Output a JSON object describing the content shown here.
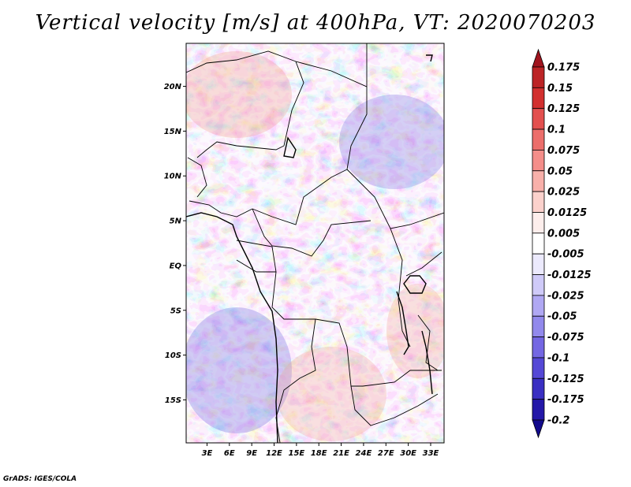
{
  "title": "Vertical velocity [m/s] at 400hPa, VT: 2020070203",
  "credit": "GrADS: IGES/COLA",
  "map": {
    "lat_ticks": [
      "20N",
      "15N",
      "10N",
      "5N",
      "EQ",
      "5S",
      "10S",
      "15S"
    ],
    "lat_values": [
      20,
      15,
      10,
      5,
      0,
      -5,
      -10,
      -15
    ],
    "lon_ticks": [
      "3E",
      "6E",
      "9E",
      "12E",
      "15E",
      "18E",
      "21E",
      "24E",
      "27E",
      "30E",
      "33E"
    ],
    "lon_values": [
      3,
      6,
      9,
      12,
      15,
      18,
      21,
      24,
      27,
      30,
      33
    ],
    "lat_range": [
      -19.8,
      24.8
    ],
    "lon_range": [
      0.2,
      34.8
    ]
  },
  "colorbar": {
    "labels": [
      "0.175",
      "0.15",
      "0.125",
      "0.1",
      "0.075",
      "0.05",
      "0.025",
      "0.0125",
      "0.005",
      "-0.005",
      "-0.0125",
      "-0.025",
      "-0.05",
      "-0.075",
      "-0.1",
      "-0.125",
      "-0.175",
      "-0.2"
    ],
    "colors": [
      "#a0141e",
      "#bc2426",
      "#d2302f",
      "#e3504f",
      "#ec6e6b",
      "#f48e8a",
      "#f8b0aa",
      "#fbd1cc",
      "#fdeeec",
      "#ffffff",
      "#eceafd",
      "#cfcaf8",
      "#b0a8f3",
      "#9289ec",
      "#7467e3",
      "#5548d6",
      "#3a2fc2",
      "#2418a8",
      "#120a8c"
    ]
  }
}
